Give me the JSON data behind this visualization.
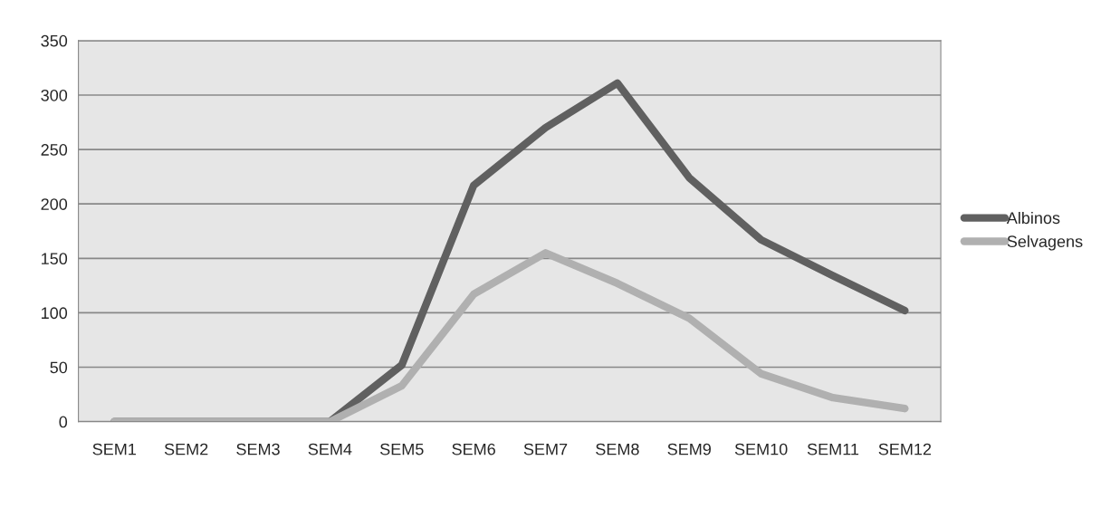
{
  "chart_data": {
    "type": "line",
    "categories": [
      "SEM1",
      "SEM2",
      "SEM3",
      "SEM4",
      "SEM5",
      "SEM6",
      "SEM7",
      "SEM8",
      "SEM9",
      "SEM10",
      "SEM11",
      "SEM12"
    ],
    "series": [
      {
        "name": "Albinos",
        "color": "#606060",
        "values": [
          0,
          0,
          0,
          0,
          52,
          217,
          270,
          311,
          224,
          167,
          134,
          102
        ]
      },
      {
        "name": "Selvagens",
        "color": "#b0b0b0",
        "values": [
          0,
          0,
          0,
          0,
          33,
          117,
          155,
          127,
          95,
          44,
          22,
          12
        ]
      }
    ],
    "ylim": [
      0,
      350
    ],
    "yticks": [
      0,
      50,
      100,
      150,
      200,
      250,
      300,
      350
    ],
    "grid": "y",
    "legend": "right",
    "marker": "none",
    "line_style": "solid"
  }
}
